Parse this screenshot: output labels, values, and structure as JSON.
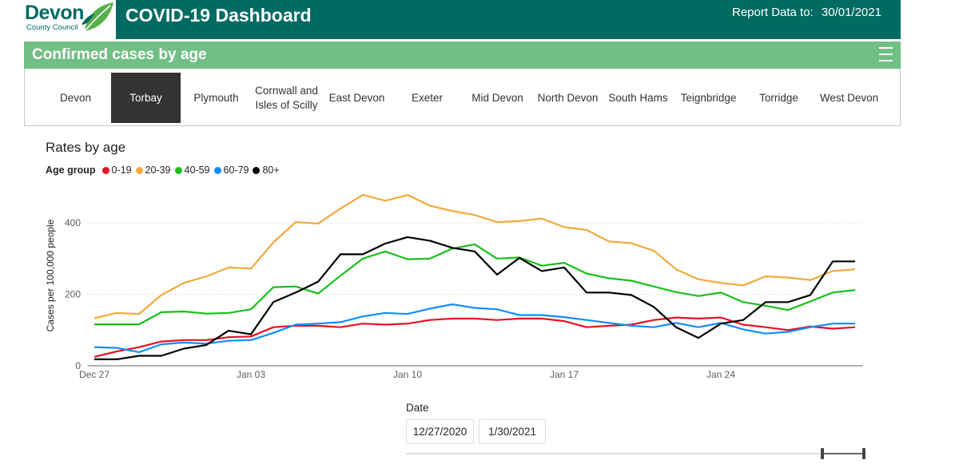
{
  "header": {
    "logo_name": "Devon",
    "logo_subtitle": "County Council",
    "title": "COVID-19 Dashboard",
    "report_label": "Report Data to:",
    "report_date": "30/01/2021",
    "brand_color": "#006b63"
  },
  "section": {
    "title": "Confirmed cases by age",
    "color": "#71bf84"
  },
  "tabs": [
    {
      "label": "Devon"
    },
    {
      "label": "Torbay",
      "active": true
    },
    {
      "label": "Plymouth"
    },
    {
      "label": "Cornwall and Isles of Scilly"
    },
    {
      "label": "East Devon"
    },
    {
      "label": "Exeter"
    },
    {
      "label": "Mid Devon"
    },
    {
      "label": "North Devon"
    },
    {
      "label": "South Hams"
    },
    {
      "label": "Teignbridge"
    },
    {
      "label": "Torridge"
    },
    {
      "label": "West Devon"
    }
  ],
  "chart_data": {
    "type": "line",
    "title": "Rates by age",
    "legend_title": "Age group",
    "xlabel": "",
    "ylabel": "Cases per 100,000 people",
    "ylim": [
      0,
      500
    ],
    "yticks": [
      0,
      200,
      400
    ],
    "xticks": [
      {
        "label": "Dec 27",
        "day": 0
      },
      {
        "label": "Jan 03",
        "day": 7
      },
      {
        "label": "Jan 10",
        "day": 14
      },
      {
        "label": "Jan 17",
        "day": 21
      },
      {
        "label": "Jan 24",
        "day": 28
      }
    ],
    "x_start": "2020-12-27",
    "series": [
      {
        "name": "0-19",
        "color": "#e81123",
        "values": [
          25,
          40,
          52,
          68,
          72,
          72,
          80,
          82,
          108,
          112,
          112,
          108,
          118,
          115,
          118,
          128,
          132,
          132,
          128,
          132,
          132,
          125,
          108,
          112,
          115,
          128,
          135,
          132,
          135,
          115,
          108,
          100,
          110,
          104,
          108
        ]
      },
      {
        "name": "20-39",
        "color": "#f2a93b",
        "values": [
          133,
          148,
          145,
          198,
          232,
          250,
          275,
          272,
          345,
          402,
          398,
          440,
          478,
          462,
          478,
          448,
          433,
          422,
          402,
          405,
          412,
          388,
          380,
          348,
          343,
          322,
          270,
          242,
          232,
          225,
          250,
          247,
          240,
          265,
          270
        ]
      },
      {
        "name": "40-59",
        "color": "#18c01a",
        "values": [
          116,
          116,
          116,
          150,
          152,
          146,
          148,
          158,
          220,
          222,
          202,
          252,
          300,
          320,
          298,
          300,
          328,
          340,
          300,
          303,
          280,
          288,
          258,
          245,
          238,
          222,
          206,
          195,
          205,
          178,
          168,
          156,
          180,
          205,
          212
        ]
      },
      {
        "name": "60-79",
        "color": "#118dff",
        "values": [
          52,
          50,
          38,
          60,
          65,
          62,
          70,
          72,
          92,
          115,
          118,
          122,
          138,
          148,
          145,
          160,
          172,
          162,
          158,
          142,
          142,
          136,
          128,
          120,
          112,
          108,
          120,
          108,
          120,
          102,
          90,
          95,
          108,
          118,
          118
        ]
      },
      {
        "name": "80+",
        "color": "#000000",
        "values": [
          18,
          18,
          28,
          28,
          48,
          58,
          98,
          88,
          178,
          205,
          235,
          312,
          312,
          342,
          360,
          350,
          330,
          320,
          255,
          302,
          265,
          275,
          205,
          205,
          198,
          165,
          108,
          78,
          118,
          128,
          178,
          178,
          198,
          292,
          292
        ]
      }
    ],
    "gridlines": "dotted horizontal"
  },
  "date_filter": {
    "label": "Date",
    "start": "12/27/2020",
    "end": "1/30/2021"
  }
}
